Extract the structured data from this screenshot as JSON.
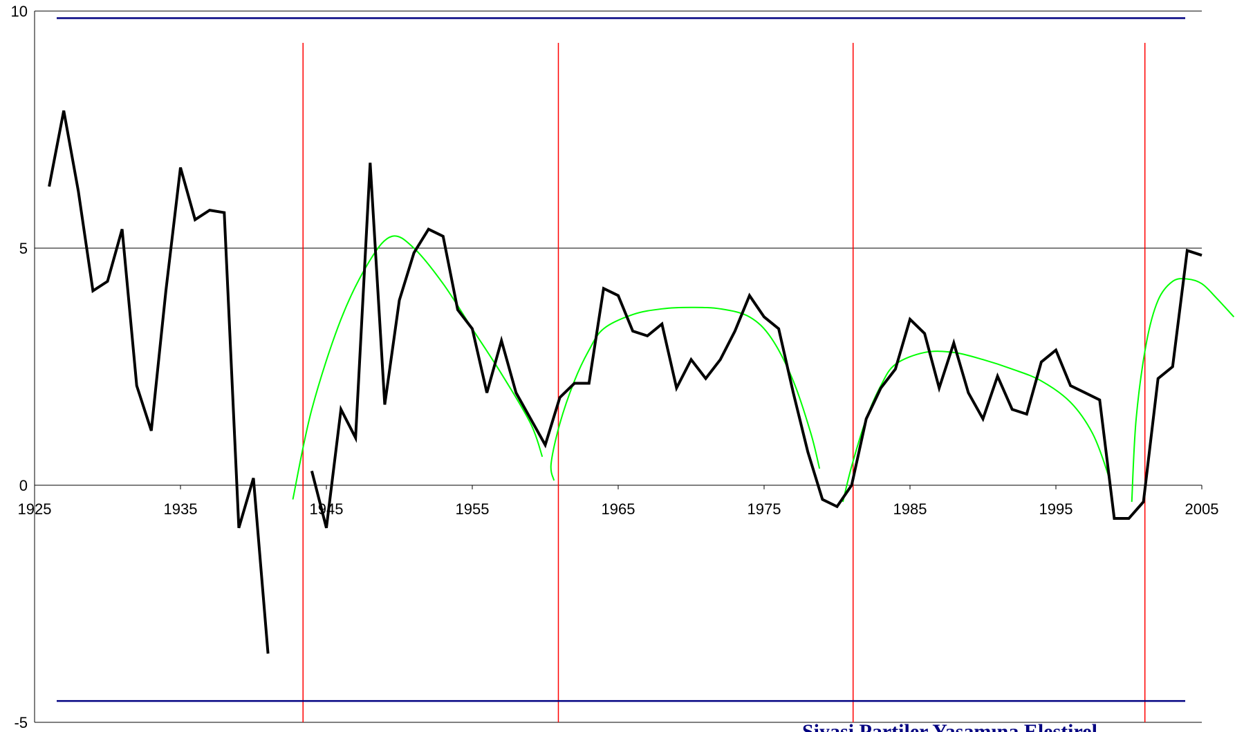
{
  "chart_data": {
    "type": "line",
    "title": "",
    "xlabel": "",
    "ylabel": "",
    "xlim": [
      1925,
      2005
    ],
    "ylim": [
      -5,
      10
    ],
    "grid": "horizontal lines at each y tick",
    "x_ticks": [
      1925,
      1935,
      1945,
      1955,
      1965,
      1975,
      1985,
      1995,
      2005
    ],
    "y_ticks": [
      10,
      5,
      0,
      -5
    ],
    "series": [
      {
        "color": "#000000",
        "points": [
          [
            1926,
            6.3
          ],
          [
            1927,
            7.9
          ],
          [
            1928,
            6.2
          ],
          [
            1929,
            4.1
          ],
          [
            1930,
            4.3
          ],
          [
            1931,
            5.4
          ],
          [
            1932,
            2.1
          ],
          [
            1933,
            1.15
          ],
          [
            1934,
            4.1
          ],
          [
            1935,
            6.7
          ],
          [
            1936,
            5.6
          ],
          [
            1937,
            5.8
          ],
          [
            1938,
            5.75
          ],
          [
            1939,
            -0.9
          ],
          [
            1940,
            0.15
          ],
          [
            1941,
            -3.55
          ]
        ]
      },
      {
        "color": "#000000",
        "points": [
          [
            1944,
            0.3
          ],
          [
            1945,
            -0.9
          ],
          [
            1946,
            1.6
          ],
          [
            1947,
            1.0
          ],
          [
            1948,
            6.8
          ],
          [
            1949,
            1.7
          ],
          [
            1950,
            3.9
          ],
          [
            1951,
            4.9
          ],
          [
            1952,
            5.4
          ],
          [
            1953,
            5.25
          ],
          [
            1954,
            3.7
          ],
          [
            1955,
            3.3
          ],
          [
            1956,
            1.95
          ],
          [
            1957,
            3.05
          ],
          [
            1958,
            1.95
          ],
          [
            1959,
            1.4
          ],
          [
            1960,
            0.85
          ],
          [
            1961,
            1.85
          ],
          [
            1962,
            2.15
          ],
          [
            1963,
            2.15
          ],
          [
            1964,
            4.15
          ],
          [
            1965,
            4.0
          ],
          [
            1966,
            3.25
          ],
          [
            1967,
            3.15
          ],
          [
            1968,
            3.4
          ],
          [
            1969,
            2.05
          ],
          [
            1970,
            2.65
          ],
          [
            1971,
            2.25
          ],
          [
            1972,
            2.65
          ],
          [
            1973,
            3.25
          ],
          [
            1974,
            4.0
          ],
          [
            1975,
            3.55
          ],
          [
            1976,
            3.3
          ],
          [
            1977,
            1.95
          ],
          [
            1978,
            0.7
          ],
          [
            1979,
            -0.3
          ],
          [
            1980,
            -0.45
          ],
          [
            1981,
            0.0
          ],
          [
            1982,
            1.4
          ],
          [
            1983,
            2.05
          ],
          [
            1984,
            2.45
          ],
          [
            1985,
            3.5
          ],
          [
            1986,
            3.2
          ],
          [
            1987,
            2.05
          ],
          [
            1988,
            3.0
          ],
          [
            1989,
            1.95
          ],
          [
            1990,
            1.4
          ],
          [
            1991,
            2.3
          ],
          [
            1992,
            1.6
          ],
          [
            1993,
            1.5
          ],
          [
            1994,
            2.6
          ],
          [
            1995,
            2.85
          ],
          [
            1996,
            2.1
          ],
          [
            1997,
            1.95
          ],
          [
            1998,
            1.8
          ],
          [
            1999,
            -0.7
          ],
          [
            2000,
            -0.7
          ],
          [
            2001,
            -0.35
          ],
          [
            2002,
            2.25
          ],
          [
            2003,
            2.5
          ],
          [
            2004,
            4.95
          ],
          [
            2005,
            4.85
          ]
        ]
      }
    ],
    "trend_curves": [
      {
        "color": "#00ff00",
        "points": [
          [
            1942.7,
            -0.3
          ],
          [
            1944,
            1.6
          ],
          [
            1946,
            3.5
          ],
          [
            1948,
            4.75
          ],
          [
            1949.5,
            5.25
          ],
          [
            1951,
            5.0
          ],
          [
            1953,
            4.25
          ],
          [
            1955,
            3.3
          ],
          [
            1957,
            2.35
          ],
          [
            1959,
            1.3
          ],
          [
            1959.8,
            0.6
          ]
        ]
      },
      {
        "color": "#00ff00",
        "points": [
          [
            1960.6,
            0.1
          ],
          [
            1960.4,
            0.45
          ],
          [
            1961,
            1.3
          ],
          [
            1962,
            2.2
          ],
          [
            1963,
            2.85
          ],
          [
            1964,
            3.3
          ],
          [
            1966,
            3.6
          ],
          [
            1968,
            3.72
          ],
          [
            1970,
            3.75
          ],
          [
            1972,
            3.72
          ],
          [
            1974,
            3.55
          ],
          [
            1975.5,
            3.1
          ],
          [
            1977,
            2.2
          ],
          [
            1978.2,
            1.1
          ],
          [
            1978.8,
            0.35
          ]
        ]
      },
      {
        "color": "#00ff00",
        "points": [
          [
            1980.4,
            -0.35
          ],
          [
            1981,
            0.4
          ],
          [
            1982,
            1.4
          ],
          [
            1983,
            2.1
          ],
          [
            1984,
            2.55
          ],
          [
            1986,
            2.8
          ],
          [
            1988,
            2.8
          ],
          [
            1990,
            2.65
          ],
          [
            1992,
            2.45
          ],
          [
            1994,
            2.2
          ],
          [
            1996,
            1.75
          ],
          [
            1997.5,
            1.1
          ],
          [
            1998.5,
            0.3
          ],
          [
            1998.8,
            -0.1
          ]
        ]
      },
      {
        "color": "#00ff00",
        "points": [
          [
            2000.2,
            -0.35
          ],
          [
            2000.5,
            1.4
          ],
          [
            2001.2,
            3.0
          ],
          [
            2002,
            3.9
          ],
          [
            2003,
            4.3
          ],
          [
            2004,
            4.35
          ],
          [
            2005,
            4.25
          ],
          [
            2006,
            3.95
          ],
          [
            2007.2,
            3.55
          ]
        ]
      }
    ],
    "horizontal_lines": [
      {
        "y": 9.85,
        "color": "#000080"
      },
      {
        "y": -4.55,
        "color": "#000080"
      }
    ],
    "vertical_lines": [
      {
        "x": 1943.4,
        "color": "#ff0000"
      },
      {
        "x": 1960.9,
        "color": "#ff0000"
      },
      {
        "x": 1981.1,
        "color": "#ff0000"
      },
      {
        "x": 2001.1,
        "color": "#ff0000"
      }
    ],
    "annotations": [
      {
        "text": "Siyasi Partiler Yaşamına Eleştirel"
      }
    ]
  }
}
